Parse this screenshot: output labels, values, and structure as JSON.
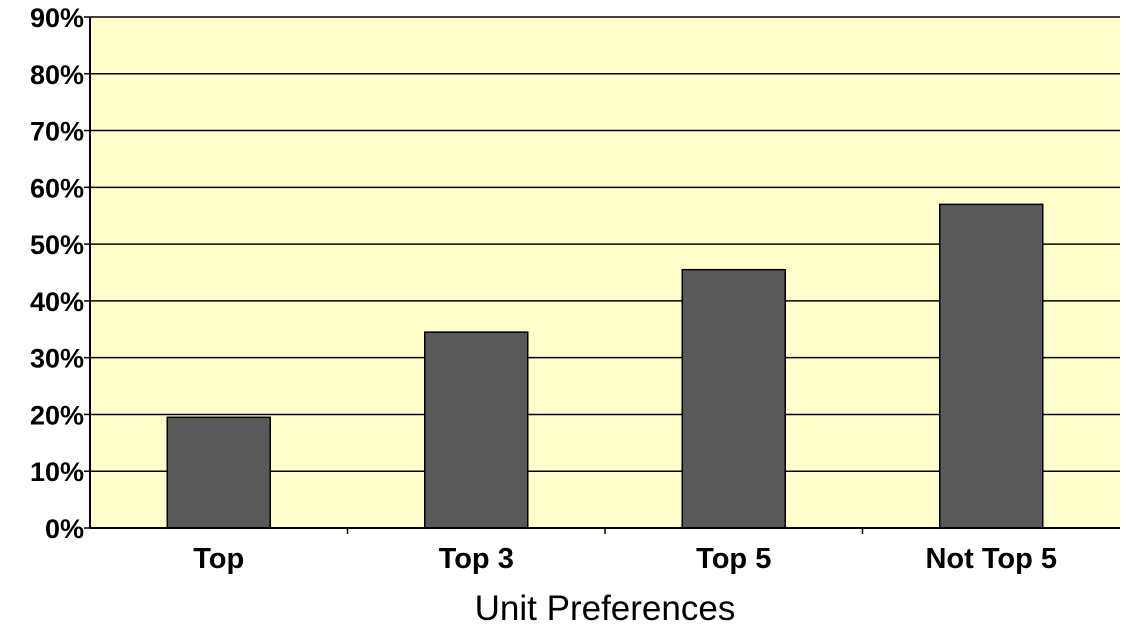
{
  "chart_data": {
    "type": "bar",
    "categories": [
      "Top",
      "Top 3",
      "Top 5",
      "Not Top 5"
    ],
    "values": [
      19.5,
      34.5,
      45.5,
      57
    ],
    "xlabel": "Unit Preferences",
    "ylabel": "",
    "ylim": [
      0,
      90
    ],
    "yticks": [
      "0%",
      "10%",
      "20%",
      "30%",
      "40%",
      "50%",
      "60%",
      "70%",
      "80%",
      "90%"
    ],
    "grid": true,
    "legend": "none"
  },
  "colors": {
    "plot_background": "#ffffcc",
    "bar_fill": "#595959",
    "bar_stroke": "#000000",
    "gridline": "#000000"
  }
}
